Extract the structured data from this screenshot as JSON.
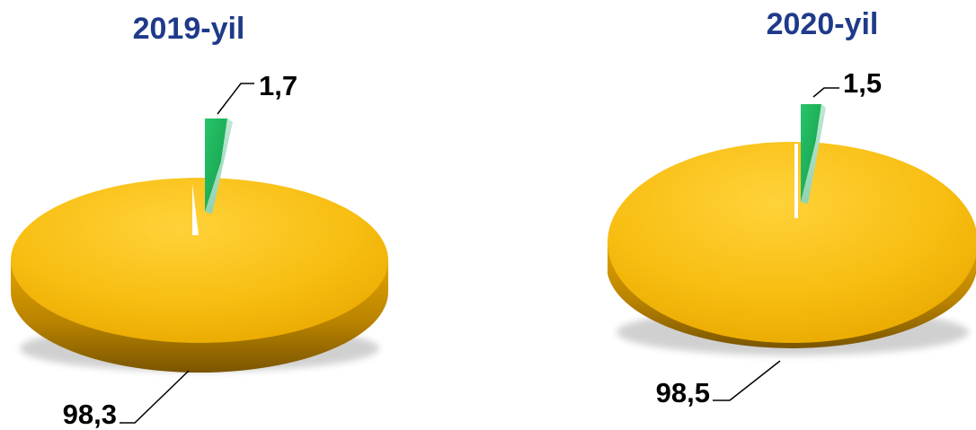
{
  "chart_data": [
    {
      "type": "pie",
      "title": "2019-yil",
      "slices": [
        {
          "label": "1,7",
          "value": 1.7,
          "color": "#1fb35c"
        },
        {
          "label": "98,3",
          "value": 98.3,
          "color": "#f5b700"
        }
      ]
    },
    {
      "type": "pie",
      "title": "2020-yil",
      "slices": [
        {
          "label": "1,5",
          "value": 1.5,
          "color": "#1fb35c"
        },
        {
          "label": "98,5",
          "value": 98.5,
          "color": "#f5b700"
        }
      ]
    }
  ]
}
